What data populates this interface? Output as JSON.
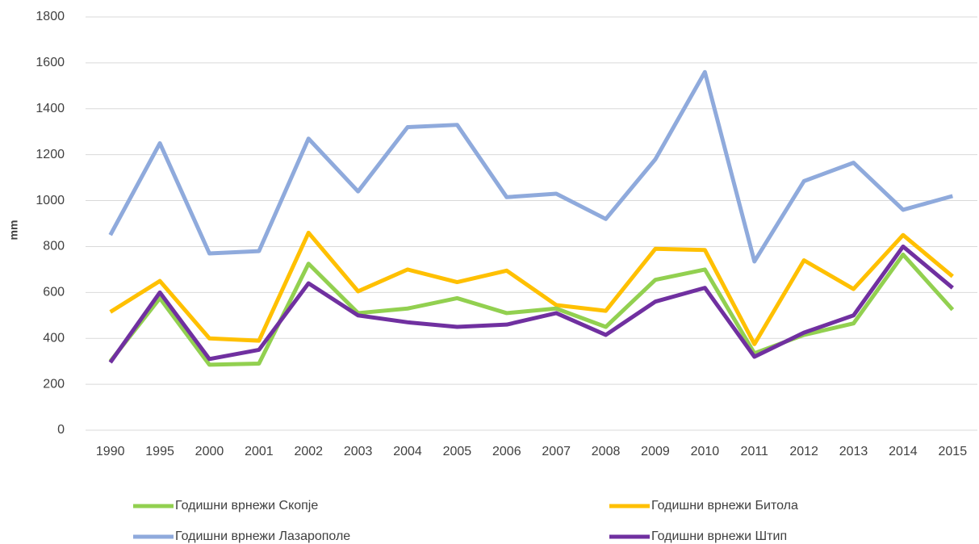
{
  "chart_data": {
    "type": "line",
    "y_label": "mm",
    "categories": [
      "1990",
      "1995",
      "2000",
      "2001",
      "2002",
      "2003",
      "2004",
      "2005",
      "2006",
      "2007",
      "2008",
      "2009",
      "2010",
      "2011",
      "2012",
      "2013",
      "2014",
      "2015"
    ],
    "series": [
      {
        "name": "Годишни врнежи Скопје",
        "color": "#92d050",
        "values": [
          300,
          575,
          285,
          290,
          725,
          510,
          530,
          575,
          510,
          530,
          450,
          655,
          700,
          335,
          415,
          465,
          765,
          525
        ]
      },
      {
        "name": "Годишни врнежи Битола",
        "color": "#ffc000",
        "values": [
          515,
          650,
          400,
          390,
          860,
          605,
          700,
          645,
          695,
          545,
          520,
          790,
          785,
          375,
          740,
          615,
          850,
          670
        ]
      },
      {
        "name": "Годишни врнежи Лазарополе",
        "color": "#8faadc",
        "values": [
          850,
          1250,
          770,
          780,
          1270,
          1040,
          1320,
          1330,
          1015,
          1030,
          920,
          1180,
          1560,
          735,
          1085,
          1165,
          960,
          1020
        ]
      },
      {
        "name": "Годишни врнежи Штип",
        "color": "#7030a0",
        "values": [
          295,
          600,
          310,
          350,
          640,
          500,
          470,
          450,
          460,
          510,
          415,
          560,
          620,
          320,
          425,
          500,
          800,
          620
        ]
      }
    ],
    "ylim": [
      0,
      1800
    ],
    "yticks": [
      0,
      200,
      400,
      600,
      800,
      1000,
      1200,
      1400,
      1600,
      1800
    ],
    "grid": true
  }
}
